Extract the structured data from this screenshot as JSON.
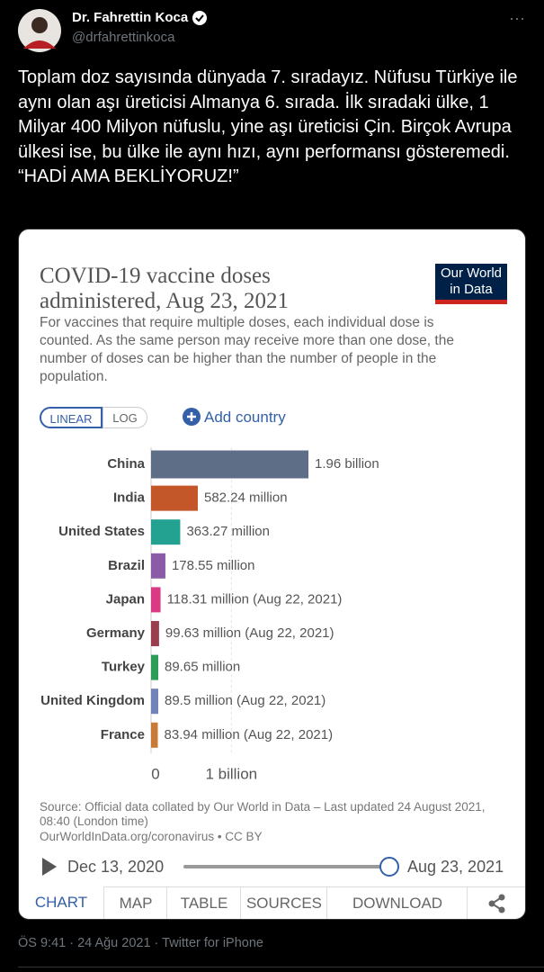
{
  "tweet": {
    "name": "Dr. Fahrettin Koca",
    "handle": "@drfahrettinkoca",
    "text": "Toplam doz sayısında dünyada 7. sıradayız. Nüfusu Türkiye ile aynı olan aşı üreticisi Almanya 6. sırada. İlk sıradaki ülke, 1 Milyar 400 Milyon nüfuslu, yine aşı üreticisi Çin. Birçok Avrupa ülkesi ise, bu ülke ile aynı hızı, aynı performansı gösteremedi. “HADİ AMA BEKLİYORUZ!”",
    "footer": "ÖS 9:41 · 24 Ağu 2021 · Twitter for iPhone"
  },
  "chart_data": {
    "type": "bar",
    "orientation": "horizontal",
    "title": "COVID-19 vaccine doses administered, Aug 23, 2021",
    "subtitle": "For vaccines that require multiple doses, each individual dose is counted. As the same person may receive more than one dose, the number of doses can be higher than the number of people in the population.",
    "logo": "Our World in Data",
    "scale_buttons": [
      "LINEAR",
      "LOG"
    ],
    "add_country": "Add country",
    "categories": [
      "China",
      "India",
      "United States",
      "Brazil",
      "Japan",
      "Germany",
      "Turkey",
      "United Kingdom",
      "France"
    ],
    "values": [
      1960000000,
      582240000,
      363270000,
      178550000,
      118310000,
      99630000,
      89650000,
      89500000,
      83940000
    ],
    "value_labels": [
      "1.96 billion",
      "582.24 million",
      "363.27 million",
      "178.55 million",
      "118.31 million (Aug 22, 2021)",
      "99.63 million (Aug 22, 2021)",
      "89.65 million",
      "89.5 million (Aug 22, 2021)",
      "83.94 million (Aug 22, 2021)"
    ],
    "colors": [
      "#5e6e87",
      "#c3572a",
      "#23a191",
      "#8a5ca8",
      "#d93a83",
      "#9a3d4f",
      "#2e9c57",
      "#7183b7",
      "#c97a36"
    ],
    "xlim": [
      0,
      2000000000
    ],
    "xticks": [
      0,
      {
        "value": 1000000000,
        "label": "1 billion"
      }
    ],
    "grid": true,
    "source": "Source: Official data collated by Our World in Data – Last updated 24 August 2021, 08:40 (London time)",
    "url": "OurWorldInData.org/coronavirus • CC BY",
    "timeline": {
      "start": "Dec 13, 2020",
      "end": "Aug 23, 2021"
    },
    "tabs": [
      "CHART",
      "MAP",
      "TABLE",
      "SOURCES",
      "DOWNLOAD"
    ]
  }
}
